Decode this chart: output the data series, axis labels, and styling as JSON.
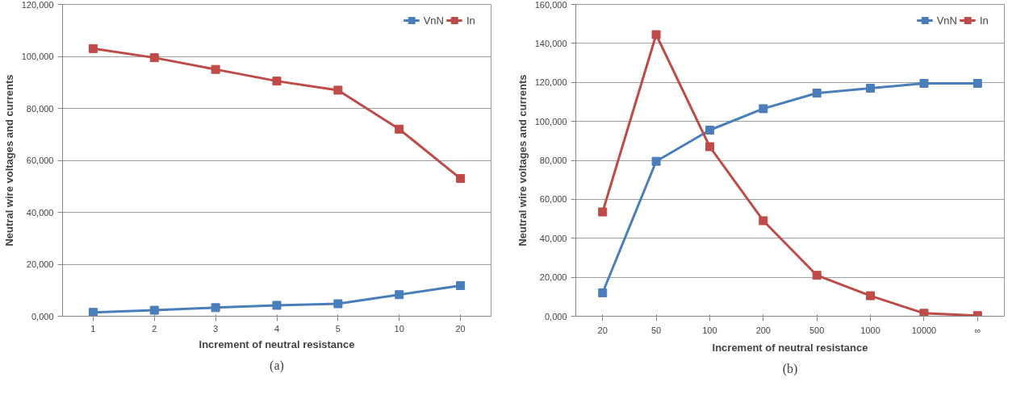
{
  "chart_data": [
    {
      "type": "line",
      "xlabel": "Increment of neutral resistance",
      "ylabel": "Neutral wire voltages and currents",
      "categories": [
        "1",
        "2",
        "3",
        "4",
        "5",
        "10",
        "20"
      ],
      "series": [
        {
          "name": "VnN",
          "color": "#4a7ebb",
          "values": [
            1.5,
            2.3,
            3.3,
            4.2,
            4.8,
            8.3,
            11.8
          ]
        },
        {
          "name": "In",
          "color": "#be4b48",
          "values": [
            103,
            99.5,
            95,
            90.5,
            87,
            72,
            53
          ]
        }
      ],
      "ylim": [
        0,
        120
      ],
      "yticks": [
        {
          "value": 0,
          "label": "0,000"
        },
        {
          "value": 20,
          "label": "20,000"
        },
        {
          "value": 40,
          "label": "40,000"
        },
        {
          "value": 60,
          "label": "60,000"
        },
        {
          "value": 80,
          "label": "80,000"
        },
        {
          "value": 100,
          "label": "100,000"
        },
        {
          "value": 120,
          "label": "120,000"
        }
      ],
      "grid": "y",
      "legend": "top right",
      "marker": "square",
      "line_style": "solid",
      "annotations": [
        "(a)"
      ]
    },
    {
      "type": "line",
      "xlabel": "Increment of neutral resistance",
      "ylabel": "Neutral wire voltages and currents",
      "categories": [
        "20",
        "50",
        "100",
        "200",
        "500",
        "1000",
        "10000",
        "∞"
      ],
      "series": [
        {
          "name": "VnN",
          "color": "#4a7ebb",
          "values": [
            12,
            79.5,
            95.5,
            106.5,
            114.5,
            117,
            119.5,
            119.5
          ]
        },
        {
          "name": "In",
          "color": "#be4b48",
          "values": [
            53.5,
            144.5,
            87,
            49,
            21,
            10.5,
            1.5,
            0.3
          ]
        }
      ],
      "ylim": [
        0,
        160
      ],
      "yticks": [
        {
          "value": 0,
          "label": "0,000"
        },
        {
          "value": 20,
          "label": "20,000"
        },
        {
          "value": 40,
          "label": "40,000"
        },
        {
          "value": 60,
          "label": "60,000"
        },
        {
          "value": 80,
          "label": "80,000"
        },
        {
          "value": 100,
          "label": "100,000"
        },
        {
          "value": 120,
          "label": "120,000"
        },
        {
          "value": 140,
          "label": "140,000"
        },
        {
          "value": 160,
          "label": "160,000"
        }
      ],
      "grid": "y",
      "legend": "top right",
      "marker": "square",
      "line_style": "solid",
      "annotations": [
        "(b)"
      ]
    }
  ]
}
